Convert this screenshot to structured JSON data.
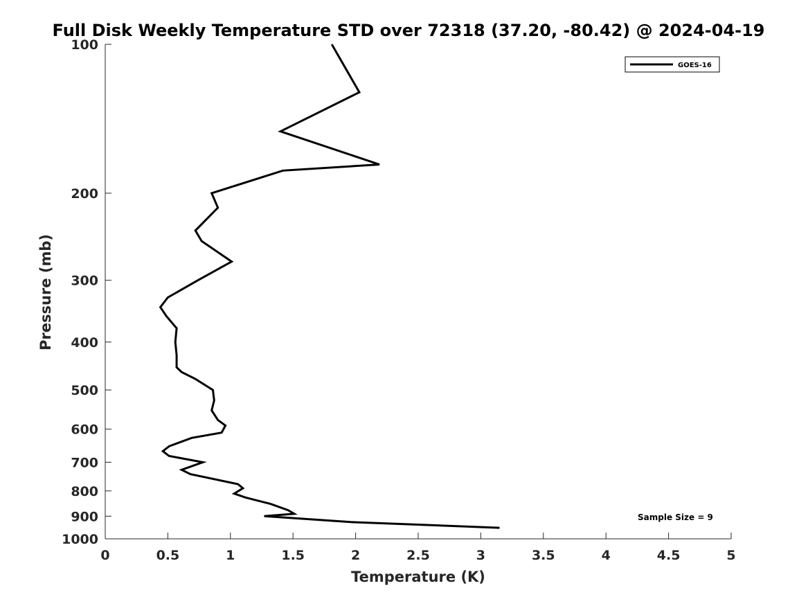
{
  "chart_data": {
    "type": "line",
    "title": "Full Disk Weekly Temperature STD over 72318 (37.20, -80.42) @ 2024-04-19",
    "xlabel": "Temperature (K)",
    "ylabel": "Pressure (mb)",
    "xlim": [
      0,
      5
    ],
    "ylim": [
      100,
      1000
    ],
    "y_scale": "log",
    "y_reversed": true,
    "x_ticks": [
      "0",
      "0.5",
      "1",
      "1.5",
      "2",
      "2.5",
      "3",
      "3.5",
      "4",
      "4.5",
      "5"
    ],
    "y_ticks": [
      "100",
      "200",
      "300",
      "400",
      "500",
      "600",
      "700",
      "800",
      "900",
      "1000"
    ],
    "grid": false,
    "legend_position": "top-right",
    "annotation": "Sample Size = 9",
    "series": [
      {
        "name": "GOES-16",
        "color": "#000000",
        "points": [
          [
            1.81,
            100
          ],
          [
            2.03,
            125
          ],
          [
            1.4,
            150
          ],
          [
            2.19,
            175
          ],
          [
            1.42,
            180
          ],
          [
            0.85,
            200
          ],
          [
            0.9,
            214
          ],
          [
            0.72,
            238
          ],
          [
            0.77,
            250
          ],
          [
            1.01,
            275
          ],
          [
            0.74,
            300
          ],
          [
            0.5,
            325
          ],
          [
            0.44,
            340
          ],
          [
            0.49,
            355
          ],
          [
            0.57,
            375
          ],
          [
            0.56,
            400
          ],
          [
            0.57,
            425
          ],
          [
            0.57,
            450
          ],
          [
            0.61,
            460
          ],
          [
            0.72,
            475
          ],
          [
            0.86,
            500
          ],
          [
            0.87,
            525
          ],
          [
            0.85,
            550
          ],
          [
            0.9,
            575
          ],
          [
            0.96,
            590
          ],
          [
            0.93,
            610
          ],
          [
            0.69,
            625
          ],
          [
            0.51,
            650
          ],
          [
            0.46,
            665
          ],
          [
            0.51,
            680
          ],
          [
            0.78,
            700
          ],
          [
            0.61,
            725
          ],
          [
            0.68,
            740
          ],
          [
            1.06,
            775
          ],
          [
            1.1,
            790
          ],
          [
            1.03,
            810
          ],
          [
            1.12,
            825
          ],
          [
            1.32,
            850
          ],
          [
            1.46,
            875
          ],
          [
            1.51,
            890
          ],
          [
            1.27,
            900
          ],
          [
            1.96,
            925
          ],
          [
            3.15,
            950
          ]
        ]
      }
    ]
  }
}
